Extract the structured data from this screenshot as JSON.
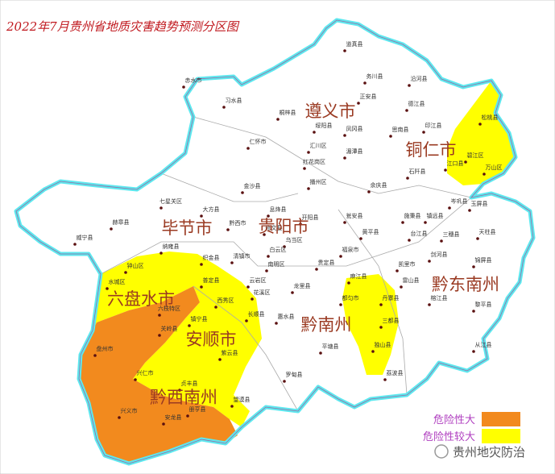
{
  "title": "2022年7月贵州省地质灾害趋势预测分区图",
  "regions": [
    {
      "name": "遵义市"
    },
    {
      "name": "铜仁市"
    },
    {
      "name": "毕节市"
    },
    {
      "name": "贵阳市"
    },
    {
      "name": "六盘水市"
    },
    {
      "name": "安顺市"
    },
    {
      "name": "黔南州"
    },
    {
      "name": "黔东南州"
    },
    {
      "name": "黔西南州"
    }
  ],
  "counties": [
    "道真县",
    "务川县",
    "正安县",
    "沿河县",
    "德江县",
    "印江县",
    "思南县",
    "松桃县",
    "碧江区",
    "万山区",
    "江口县",
    "石阡县",
    "凤冈县",
    "湄潭县",
    "绥阳县",
    "桐梓县",
    "习水县",
    "赤水市",
    "仁怀市",
    "汇川区",
    "红花岗区",
    "播州区",
    "余庆县",
    "金沙县",
    "七星关区",
    "大方县",
    "赫章县",
    "威宁县",
    "黔西市",
    "纳雍县",
    "织金县",
    "钟山区",
    "水城区",
    "六枝特区",
    "普定县",
    "西秀区",
    "镇宁县",
    "关岭县",
    "紫云县",
    "盘州市",
    "兴仁市",
    "兴义市",
    "安龙县",
    "册亨县",
    "贞丰县",
    "望谟县",
    "罗甸县",
    "平塘县",
    "惠水县",
    "长顺县",
    "龙里县",
    "贵定县",
    "都匀市",
    "独山县",
    "三都县",
    "荔波县",
    "丹寨县",
    "麻江县",
    "凯里市",
    "福泉市",
    "瓮安县",
    "黄平县",
    "施秉县",
    "镇远县",
    "三穗县",
    "岑巩县",
    "玉屏县",
    "天柱县",
    "剑河县",
    "锦屏县",
    "台江县",
    "雷山县",
    "榕江县",
    "黎平县",
    "从江县",
    "开阳县",
    "息烽县",
    "修文县",
    "清镇市",
    "乌当区",
    "白云区",
    "云岩区",
    "南明区",
    "花溪区"
  ],
  "legend": [
    {
      "label": "危险性大",
      "color": "#f28a1e"
    },
    {
      "label": "危险性较大",
      "color": "#ffff00"
    }
  ],
  "watermark": "贵州地灾防治"
}
